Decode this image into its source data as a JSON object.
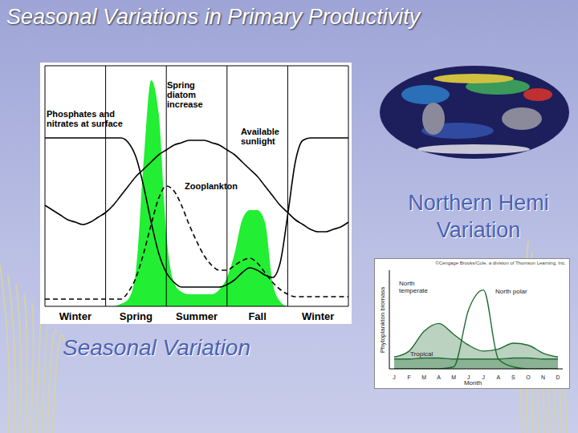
{
  "slide": {
    "title": "Seasonal Variations in Primary Productivity"
  },
  "chart_data": [
    {
      "type": "area",
      "title": "Seasonal Variation",
      "categories": [
        null,
        null,
        null,
        null,
        "Winter",
        null,
        null,
        null,
        null,
        null,
        null,
        null,
        "Spring",
        null,
        null,
        null,
        null,
        null,
        null,
        null,
        "Summer",
        null,
        null,
        null,
        null,
        null,
        null,
        null,
        "Fall",
        null,
        null,
        null,
        null,
        null,
        null,
        null,
        "Winter",
        null,
        null,
        null,
        null
      ],
      "series": [
        {
          "name": "Spring diatom increase",
          "type": "area",
          "color": "#22ee33",
          "values": [
            0,
            0,
            0,
            0,
            0,
            0,
            0,
            0,
            0,
            0,
            1,
            3,
            15,
            60,
            94,
            80,
            30,
            10,
            6,
            5,
            5,
            5,
            5,
            7,
            12,
            22,
            36,
            40,
            40,
            35,
            10,
            2,
            0,
            0,
            0,
            0,
            0,
            0,
            0,
            0,
            0
          ]
        },
        {
          "name": "Phosphates and nitrates at surface",
          "type": "line",
          "color": "#000000",
          "line_style": "solid",
          "values": [
            70,
            70,
            70,
            70,
            70,
            70,
            70,
            70,
            70,
            70,
            70,
            68,
            62,
            50,
            35,
            22,
            14,
            10,
            8,
            8,
            8,
            8,
            8,
            8,
            9,
            11,
            14,
            16,
            15,
            13,
            12,
            18,
            38,
            60,
            69,
            70,
            70,
            70,
            70,
            70,
            70
          ]
        },
        {
          "name": "Available sunlight",
          "type": "line",
          "color": "#000000",
          "line_style": "solid",
          "values": [
            42,
            40,
            38,
            36,
            35,
            34,
            35,
            37,
            39,
            42,
            46,
            50,
            54,
            57,
            60,
            63,
            65,
            67,
            68,
            69,
            69,
            69,
            68,
            67,
            65,
            63,
            60,
            57,
            54,
            50,
            46,
            42,
            39,
            36,
            34,
            32,
            31,
            31,
            32,
            33,
            35
          ]
        },
        {
          "name": "Zooplankton",
          "type": "line",
          "color": "#000000",
          "line_style": "dashed",
          "values": [
            3,
            3,
            3,
            3,
            3,
            3,
            3,
            3,
            3,
            3,
            3,
            6,
            12,
            22,
            34,
            45,
            50,
            48,
            42,
            34,
            27,
            21,
            17,
            15,
            15,
            17,
            19,
            20,
            18,
            14,
            10,
            7,
            5,
            4,
            4,
            4,
            4,
            4,
            4,
            4,
            4
          ]
        }
      ],
      "ylim": [
        0,
        100
      ],
      "yticks": [],
      "tick_labels": "x",
      "grid": false
    },
    {
      "type": "line",
      "title": "Northern Hemi Variation",
      "subtitle": "©Cengage Brooks/Cole, a division of Thomson Learning, Inc.",
      "x_label": "Month",
      "y_label": "Phytoplankton biomass",
      "categories": [
        "J",
        "F",
        "M",
        "A",
        "M",
        "J",
        "J",
        "A",
        "S",
        "O",
        "N",
        "D"
      ],
      "series": [
        {
          "name": "North temperate",
          "type": "area",
          "color": "#1f6b30",
          "line_style": "solid",
          "values": [
            12,
            18,
            38,
            46,
            35,
            24,
            18,
            20,
            26,
            24,
            16,
            12
          ]
        },
        {
          "name": "North polar",
          "type": "line",
          "color": "#1f6b30",
          "line_style": "solid",
          "values": [
            0,
            0,
            0,
            0,
            2,
            60,
            80,
            10,
            2,
            0,
            0,
            0
          ]
        },
        {
          "name": "Tropical",
          "type": "area",
          "color": "#1f6b30",
          "line_style": "solid",
          "values": [
            10,
            10,
            11,
            11,
            10,
            10,
            10,
            10,
            11,
            11,
            10,
            10
          ]
        }
      ],
      "ylim": [
        0,
        100
      ],
      "yticks": [],
      "tick_labels": "x",
      "grid": false
    }
  ]
}
